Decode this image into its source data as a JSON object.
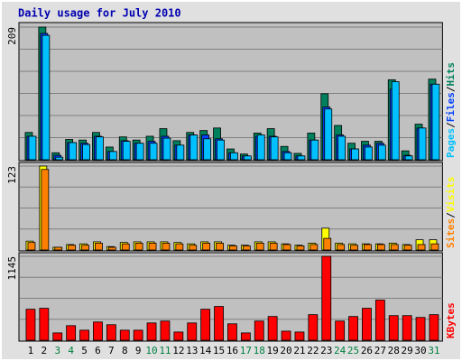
{
  "chart_data": {
    "type": "bar",
    "title": "Daily usage for July 2010",
    "categories": [
      "1",
      "2",
      "3",
      "4",
      "5",
      "6",
      "7",
      "8",
      "9",
      "10",
      "11",
      "12",
      "13",
      "14",
      "15",
      "16",
      "17",
      "18",
      "19",
      "20",
      "21",
      "22",
      "23",
      "24",
      "25",
      "26",
      "27",
      "28",
      "29",
      "30",
      "31"
    ],
    "category_colors": [
      "#000000",
      "#000000",
      "#008040",
      "#008040",
      "#000000",
      "#000000",
      "#000000",
      "#000000",
      "#000000",
      "#008040",
      "#008040",
      "#000000",
      "#000000",
      "#000000",
      "#000000",
      "#000000",
      "#008040",
      "#008040",
      "#000000",
      "#000000",
      "#000000",
      "#000000",
      "#000000",
      "#008040",
      "#008040",
      "#000000",
      "#000000",
      "#000000",
      "#000000",
      "#000000",
      "#008040"
    ],
    "legend_separator": "/",
    "panels": [
      {
        "ylim": [
          0,
          209
        ],
        "yticks": [
          209
        ],
        "series": [
          {
            "name": "Hits",
            "color": "#00805c",
            "values": [
              43,
              209,
              11,
              32,
              31,
              43,
              20,
              36,
              31,
              37,
              49,
              30,
              43,
              46,
              50,
              17,
              9,
              42,
              49,
              21,
              10,
              42,
              104,
              54,
              26,
              29,
              29,
              126,
              14,
              56,
              127
            ]
          },
          {
            "name": "Files",
            "color": "#0040ff",
            "values": [
              37,
              199,
              7,
              27,
              26,
              37,
              13,
              30,
              26,
              29,
              37,
              23,
              39,
              39,
              33,
              11,
              6,
              37,
              37,
              13,
              6,
              31,
              83,
              39,
              17,
              23,
              26,
              111,
              7,
              50,
              119
            ]
          },
          {
            "name": "Pages",
            "color": "#00c0ff",
            "values": [
              37,
              196,
              4,
              27,
              24,
              36,
              13,
              29,
              26,
              26,
              34,
              23,
              39,
              33,
              31,
              11,
              6,
              39,
              36,
              11,
              6,
              31,
              80,
              37,
              17,
              20,
              23,
              123,
              6,
              50,
              119
            ]
          }
        ]
      },
      {
        "ylim": [
          0,
          123
        ],
        "yticks": [
          123
        ],
        "series": [
          {
            "name": "Visits",
            "color": "#ffff00",
            "values": [
              13,
              123,
              4,
              8,
              9,
              12,
              5,
              11,
              12,
              12,
              12,
              11,
              9,
              12,
              12,
              7,
              7,
              12,
              12,
              9,
              7,
              10,
              32,
              10,
              9,
              9,
              9,
              10,
              8,
              15,
              15
            ]
          },
          {
            "name": "Sites",
            "color": "#ff8000",
            "values": [
              11,
              118,
              4,
              7,
              7,
              10,
              4,
              9,
              10,
              10,
              10,
              9,
              7,
              10,
              10,
              6,
              6,
              10,
              10,
              8,
              6,
              8,
              17,
              8,
              7,
              8,
              8,
              8,
              7,
              8,
              9
            ]
          }
        ]
      },
      {
        "ylim": [
          0,
          1145
        ],
        "yticks": [
          1145
        ],
        "series": [
          {
            "name": "KBytes",
            "color": "#ff0000",
            "values": [
              423,
              436,
              100,
              199,
              137,
              249,
              212,
              137,
              137,
              236,
              262,
              112,
              236,
              423,
              461,
              224,
              100,
              262,
              324,
              124,
              112,
              349,
              1145,
              262,
              324,
              436,
              548,
              336,
              336,
              311,
              349
            ]
          }
        ]
      }
    ]
  }
}
